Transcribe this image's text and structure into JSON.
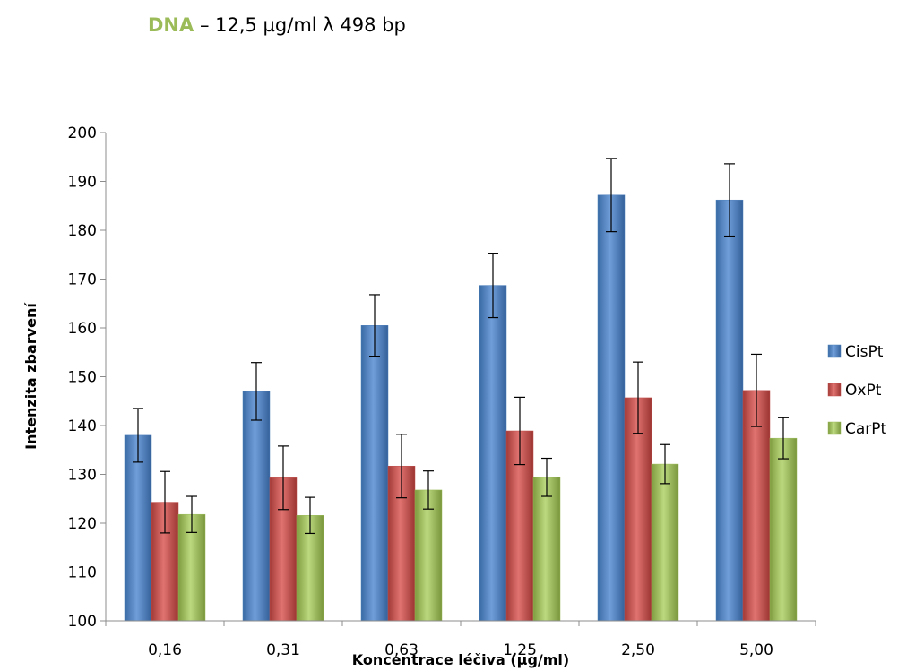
{
  "header": {
    "label": "DNA",
    "text": " –  12,5 µg/ml λ 498 bp"
  },
  "chart_data": {
    "type": "bar",
    "title": "",
    "xlabel": "Koncentrace léčiva (µg/ml)",
    "ylabel": "Intenzita zbarvení",
    "ylim": [
      100,
      200
    ],
    "yticks": [
      100,
      110,
      120,
      130,
      140,
      150,
      160,
      170,
      180,
      190,
      200
    ],
    "ytick_labels": [
      "100",
      "110",
      "120",
      "130",
      "140",
      "150",
      "160",
      "170",
      "180",
      "190",
      "200"
    ],
    "categories": [
      "0,16",
      "0,31",
      "0,63",
      "1,25",
      "2,50",
      "5,00"
    ],
    "grid": false,
    "legend": "right",
    "series": [
      {
        "name": "CisPt",
        "color": "#4f81bd",
        "values": [
          138,
          147,
          160.5,
          168.7,
          187.2,
          186.2
        ],
        "errors": [
          5.5,
          5.9,
          6.3,
          6.6,
          7.5,
          7.4
        ]
      },
      {
        "name": "OxPt",
        "color": "#c0504d",
        "values": [
          124.3,
          129.3,
          131.7,
          138.9,
          145.7,
          147.2
        ],
        "errors": [
          6.3,
          6.5,
          6.5,
          6.9,
          7.3,
          7.4
        ]
      },
      {
        "name": "CarPt",
        "color": "#9bbb59",
        "values": [
          121.8,
          121.6,
          126.8,
          129.4,
          132.1,
          137.4
        ],
        "errors": [
          3.7,
          3.7,
          3.9,
          3.9,
          4.0,
          4.2
        ]
      }
    ]
  }
}
